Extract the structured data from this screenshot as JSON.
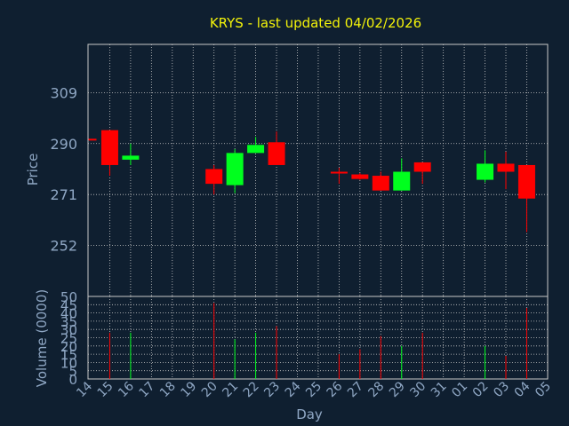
{
  "chart_data": {
    "type": "candlestick",
    "title": "KRYS - last updated 04/02/2026",
    "xlabel": "Day",
    "price_panel": {
      "ylabel": "Price",
      "yticks": [
        252,
        271,
        290,
        309
      ],
      "ylim": [
        233,
        327
      ],
      "grid": true
    },
    "volume_panel": {
      "ylabel": "Volume (0000)",
      "yticks": [
        0,
        5,
        10,
        15,
        20,
        25,
        30,
        35,
        40,
        45,
        50
      ],
      "ylim": [
        0,
        50
      ],
      "grid": true
    },
    "x_ticks": [
      "14",
      "15",
      "16",
      "17",
      "18",
      "19",
      "20",
      "21",
      "22",
      "23",
      "24",
      "25",
      "26",
      "27",
      "28",
      "29",
      "30",
      "31",
      "01",
      "02",
      "03",
      "04",
      "05"
    ],
    "candles": [
      {
        "day": "14",
        "open": 291.8,
        "close": 291.2,
        "high": 291.8,
        "low": 291.2,
        "volume": 0
      },
      {
        "day": "15",
        "open": 295,
        "close": 282,
        "high": 295,
        "low": 278,
        "volume": 28
      },
      {
        "day": "16",
        "open": 284,
        "close": 285.5,
        "high": 290,
        "low": 282,
        "volume": 28
      },
      {
        "day": "20",
        "open": 280.5,
        "close": 275,
        "high": 282,
        "low": 271,
        "volume": 46
      },
      {
        "day": "21",
        "open": 274.5,
        "close": 286.5,
        "high": 288,
        "low": 271.5,
        "volume": 24
      },
      {
        "day": "22",
        "open": 286.5,
        "close": 289.5,
        "high": 292.5,
        "low": 286.5,
        "volume": 28
      },
      {
        "day": "23",
        "open": 290.5,
        "close": 282,
        "high": 294.5,
        "low": 282,
        "volume": 32
      },
      {
        "day": "26",
        "open": 279.5,
        "close": 279,
        "high": 281,
        "low": 275,
        "volume": 15
      },
      {
        "day": "27",
        "open": 278.5,
        "close": 276.8,
        "high": 279,
        "low": 276.5,
        "volume": 18
      },
      {
        "day": "28",
        "open": 278,
        "close": 272.5,
        "high": 279.5,
        "low": 272.5,
        "volume": 26
      },
      {
        "day": "29",
        "open": 272.5,
        "close": 279.5,
        "high": 284.5,
        "low": 272.5,
        "volume": 20
      },
      {
        "day": "30",
        "open": 283,
        "close": 279.5,
        "high": 283,
        "low": 275,
        "volume": 28
      },
      {
        "day": "02",
        "open": 276.5,
        "close": 282.5,
        "high": 287.5,
        "low": 275.5,
        "volume": 20
      },
      {
        "day": "03",
        "open": 282.5,
        "close": 279.5,
        "high": 287,
        "low": 273,
        "volume": 14
      },
      {
        "day": "04",
        "open": 282,
        "close": 269.5,
        "high": 282,
        "low": 257,
        "volume": 43
      }
    ],
    "colors": {
      "up": "#00ff1e",
      "down": "#ff0000",
      "background": "#0f1f30",
      "panel": "#0f1f30",
      "grid": "#c8c8c8",
      "text": "#8fa7c4",
      "title": "#f2f20a"
    }
  }
}
